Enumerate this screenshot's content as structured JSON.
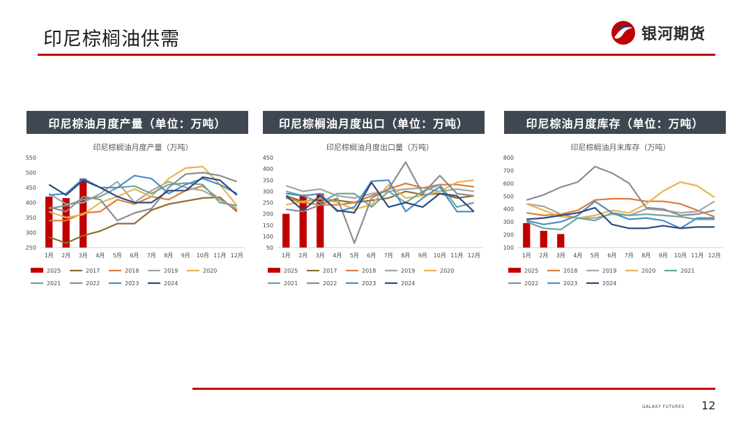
{
  "page": {
    "title": "印尼棕榈油供需",
    "brand": "银河期货",
    "footer_brand": "GALAXY FUTURES",
    "page_number": "12"
  },
  "colors": {
    "accent": "#c00000",
    "header_bg": "#3f4852",
    "s2025": "#c00000",
    "s2017": "#8b6d2e",
    "s2018": "#e07b39",
    "s2019": "#a5a5a5",
    "s2020": "#e8b44f",
    "s2021": "#6fa59a",
    "s2022": "#8c8c8c",
    "s2023": "#4a8fc7",
    "s2024": "#2e4a7a"
  },
  "panels": [
    {
      "header": "印尼棕油月度产量（单位：万吨）"
    },
    {
      "header": "印尼棕榈油月度出口（单位：万吨）"
    },
    {
      "header": "印尼棕油月度库存（单位：万吨）"
    }
  ],
  "chart_data": [
    {
      "type": "bar+line",
      "title": "印尼棕榈油月度产量（万吨）",
      "categories": [
        "1月",
        "2月",
        "3月",
        "4月",
        "5月",
        "6月",
        "7月",
        "8月",
        "9月",
        "10月",
        "11月",
        "12月"
      ],
      "ylim": [
        250,
        550
      ],
      "yticks": [
        250,
        300,
        350,
        400,
        450,
        500,
        550
      ],
      "bar_series": {
        "name": "2025",
        "color": "#c00000",
        "values": [
          420,
          415,
          480
        ]
      },
      "series": [
        {
          "name": "2017",
          "color": "#8b6d2e",
          "values": [
            285,
            265,
            290,
            305,
            330,
            330,
            375,
            395,
            405,
            415,
            418,
            370
          ]
        },
        {
          "name": "2018",
          "color": "#e07b39",
          "values": [
            340,
            340,
            365,
            370,
            410,
            395,
            420,
            410,
            440,
            455,
            410,
            375
          ]
        },
        {
          "name": "2019",
          "color": "#a5a5a5",
          "values": [
            430,
            395,
            400,
            430,
            470,
            400,
            440,
            470,
            450,
            440,
            410,
            380
          ]
        },
        {
          "name": "2020",
          "color": "#e8b44f",
          "values": [
            370,
            350,
            360,
            400,
            420,
            445,
            420,
            480,
            515,
            520,
            460,
            390
          ]
        },
        {
          "name": "2021",
          "color": "#6fa59a",
          "values": [
            380,
            390,
            410,
            420,
            450,
            455,
            430,
            460,
            465,
            460,
            400,
            390
          ]
        },
        {
          "name": "2022",
          "color": "#8c8c8c",
          "values": [
            385,
            370,
            420,
            410,
            340,
            365,
            380,
            450,
            495,
            500,
            490,
            470
          ]
        },
        {
          "name": "2023",
          "color": "#4a8fc7",
          "values": [
            425,
            430,
            480,
            450,
            450,
            490,
            480,
            430,
            460,
            480,
            460,
            430
          ]
        },
        {
          "name": "2024",
          "color": "#2e4a7a",
          "values": [
            460,
            425,
            475,
            450,
            420,
            400,
            400,
            440,
            440,
            485,
            475,
            425
          ]
        }
      ],
      "legend": [
        "2025",
        "2017",
        "2018",
        "2019",
        "2020",
        "2021",
        "2022",
        "2023",
        "2024"
      ]
    },
    {
      "type": "bar+line",
      "title": "印尼棕榈油月度出口量（万吨）",
      "categories": [
        "1月",
        "2月",
        "3月",
        "4月",
        "5月",
        "6月",
        "7月",
        "8月",
        "9月",
        "10月",
        "11月",
        "12月"
      ],
      "ylim": [
        50,
        450
      ],
      "yticks": [
        50,
        100,
        150,
        200,
        250,
        300,
        350,
        400,
        450
      ],
      "bar_series": {
        "name": "2025",
        "color": "#c00000",
        "values": [
          200,
          285,
          290
        ]
      },
      "series": [
        {
          "name": "2017",
          "color": "#8b6d2e",
          "values": [
            280,
            255,
            265,
            260,
            250,
            260,
            270,
            300,
            285,
            290,
            270,
            280
          ]
        },
        {
          "name": "2018",
          "color": "#e07b39",
          "values": [
            270,
            250,
            240,
            240,
            250,
            280,
            310,
            335,
            315,
            330,
            330,
            320
          ]
        },
        {
          "name": "2019",
          "color": "#a5a5a5",
          "values": [
            325,
            300,
            310,
            280,
            270,
            290,
            300,
            310,
            315,
            300,
            310,
            300
          ]
        },
        {
          "name": "2020",
          "color": "#e8b44f",
          "values": [
            240,
            255,
            270,
            250,
            220,
            240,
            330,
            270,
            280,
            300,
            340,
            350
          ]
        },
        {
          "name": "2021",
          "color": "#6fa59a",
          "values": [
            300,
            280,
            250,
            290,
            290,
            230,
            300,
            250,
            300,
            330,
            230,
            250
          ]
        },
        {
          "name": "2022",
          "color": "#8c8c8c",
          "values": [
            220,
            210,
            240,
            270,
            70,
            270,
            310,
            430,
            290,
            370,
            290,
            280
          ]
        },
        {
          "name": "2023",
          "color": "#4a8fc7",
          "values": [
            290,
            280,
            290,
            210,
            230,
            345,
            350,
            210,
            270,
            320,
            210,
            210
          ]
        },
        {
          "name": "2024",
          "color": "#2e4a7a",
          "values": [
            280,
            215,
            280,
            215,
            205,
            340,
            230,
            250,
            230,
            290,
            280,
            210
          ]
        }
      ],
      "legend": [
        "2025",
        "2017",
        "2018",
        "2019",
        "2020",
        "2021",
        "2022",
        "2023",
        "2024"
      ]
    },
    {
      "type": "bar+line",
      "title": "印尼棕榈油月末库存（万吨）",
      "categories": [
        "1月",
        "2月",
        "3月",
        "4月",
        "5月",
        "6月",
        "7月",
        "8月",
        "9月",
        "10月",
        "11月",
        "12月"
      ],
      "ylim": [
        100,
        800
      ],
      "yticks": [
        100,
        200,
        300,
        400,
        500,
        600,
        700,
        800
      ],
      "bar_series": {
        "name": "2025",
        "color": "#c00000",
        "values": [
          290,
          230,
          205
        ]
      },
      "series": [
        {
          "name": "2018",
          "color": "#e07b39",
          "values": [
            370,
            350,
            360,
            390,
            470,
            480,
            480,
            460,
            460,
            440,
            390,
            340
          ]
        },
        {
          "name": "2019",
          "color": "#a5a5a5",
          "values": [
            440,
            420,
            360,
            330,
            330,
            360,
            350,
            400,
            390,
            370,
            380,
            460
          ]
        },
        {
          "name": "2020",
          "color": "#e8b44f",
          "values": [
            440,
            390,
            340,
            330,
            350,
            390,
            370,
            440,
            540,
            610,
            580,
            490
          ]
        },
        {
          "name": "2021",
          "color": "#6fa59a",
          "values": [
            300,
            250,
            240,
            330,
            310,
            370,
            350,
            360,
            350,
            340,
            320,
            320
          ]
        },
        {
          "name": "2022",
          "color": "#8c8c8c",
          "values": [
            470,
            510,
            570,
            610,
            730,
            680,
            600,
            410,
            400,
            350,
            360,
            390
          ]
        },
        {
          "name": "2023",
          "color": "#4a8fc7",
          "values": [
            310,
            280,
            300,
            350,
            460,
            370,
            320,
            330,
            310,
            250,
            330,
            330
          ]
        },
        {
          "name": "2024",
          "color": "#2e4a7a",
          "values": [
            320,
            330,
            350,
            370,
            410,
            280,
            250,
            250,
            270,
            250,
            260,
            260
          ]
        }
      ],
      "legend": [
        "2025",
        "2018",
        "2019",
        "2020",
        "2021",
        "2022",
        "2023",
        "2024"
      ]
    }
  ]
}
